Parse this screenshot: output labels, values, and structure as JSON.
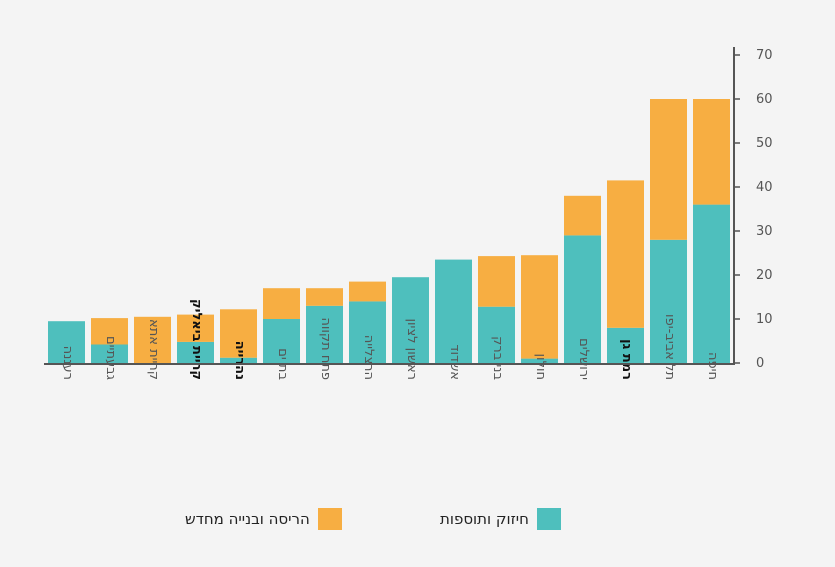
{
  "chart_data": {
    "type": "bar",
    "stacked": true,
    "categories": [
      "רעננה",
      "גבעתיים",
      "קריית אתא",
      "קריית ביאליק",
      "נהרייה",
      "בת ים",
      "פתח תקווה",
      "הרצלייה",
      "ראשון לציון",
      "אשדוד",
      "בני ברק",
      "חולון",
      "ירושלים",
      "רמת גן",
      "תל אביב-יפו",
      "חיפה"
    ],
    "bold_categories": [
      "קריית ביאליק",
      "נהרייה",
      "רמת גן"
    ],
    "series": [
      {
        "name": "חיזוק ותוספות",
        "color": "#4ebfbd",
        "values": [
          9.5,
          4.2,
          0,
          4.8,
          1.2,
          10,
          13,
          14,
          19.5,
          23.5,
          12.8,
          1,
          29,
          8,
          28,
          36
        ]
      },
      {
        "name": "הריסה ובנייה מחדש",
        "color": "#f7ae42",
        "values": [
          0,
          6,
          10.5,
          6.2,
          11,
          7,
          4,
          4.5,
          0,
          0,
          11.5,
          23.5,
          9,
          33.5,
          32,
          24
        ]
      }
    ],
    "y_ticks": [
      0,
      10,
      20,
      30,
      40,
      50,
      60,
      70
    ],
    "ylim": [
      0,
      70
    ],
    "y_axis_side": "right",
    "legend_position": "bottom"
  }
}
